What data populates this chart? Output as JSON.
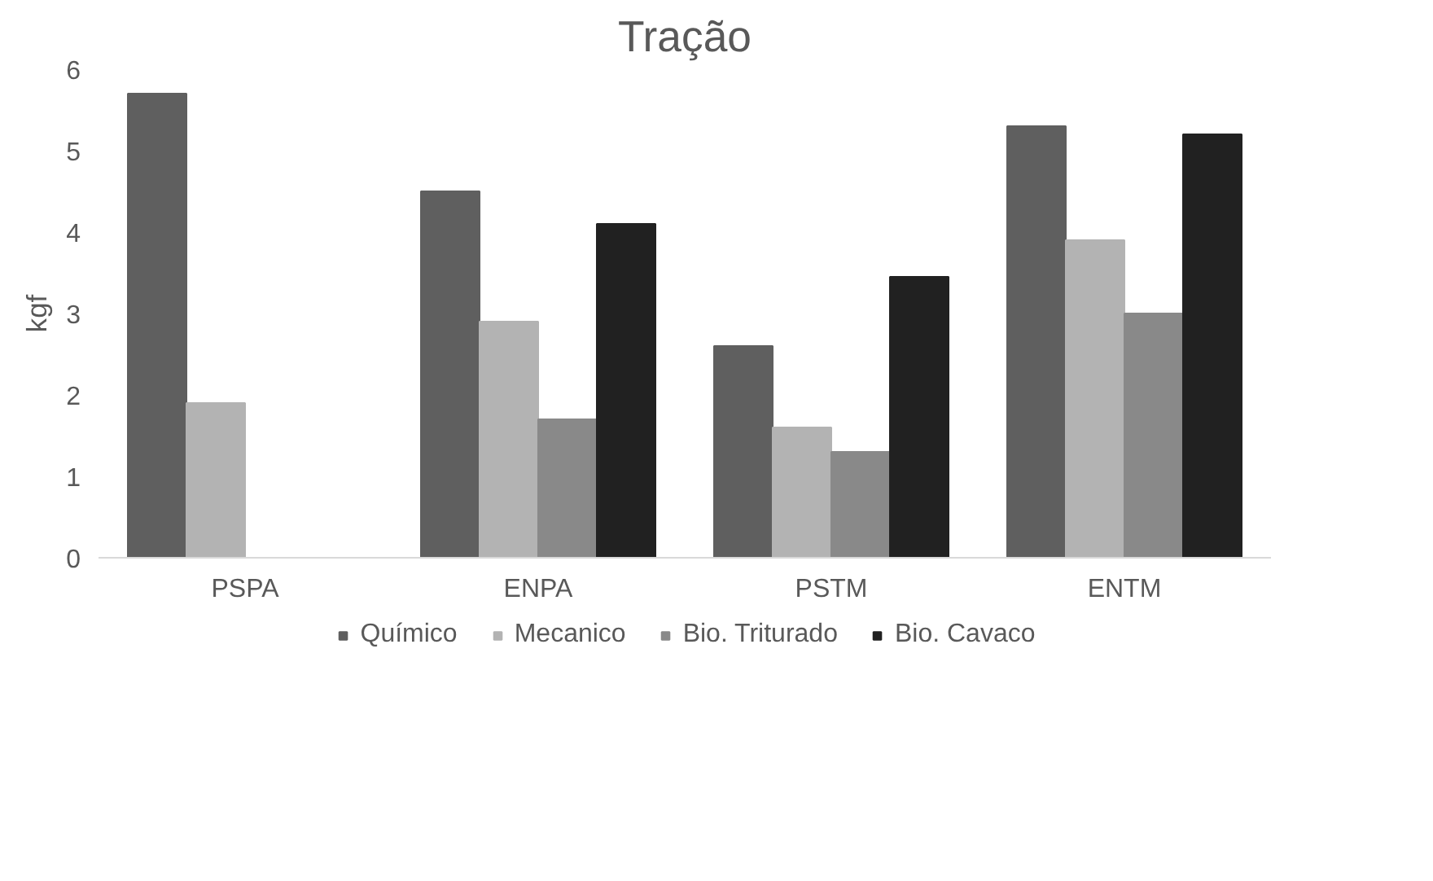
{
  "chart_data": {
    "type": "bar",
    "title": "Tração",
    "ylabel": "kgf",
    "categories": [
      "PSPA",
      "ENPA",
      "PSTM",
      "ENTM"
    ],
    "series": [
      {
        "name": "Químico",
        "color": "#5f5f5f",
        "values": [
          5.7,
          4.5,
          2.6,
          5.3
        ]
      },
      {
        "name": "Mecanico",
        "color": "#b3b3b3",
        "values": [
          1.9,
          2.9,
          1.6,
          3.9
        ]
      },
      {
        "name": "Bio. Triturado",
        "color": "#898989",
        "values": [
          0,
          1.7,
          1.3,
          3.0
        ]
      },
      {
        "name": "Bio. Cavaco",
        "color": "#212121",
        "values": [
          0,
          4.1,
          3.45,
          5.2
        ]
      }
    ],
    "ylim": [
      0,
      6
    ],
    "yticks": [
      0,
      1,
      2,
      3,
      4,
      5,
      6
    ],
    "grid": false,
    "legend": "bottom"
  }
}
